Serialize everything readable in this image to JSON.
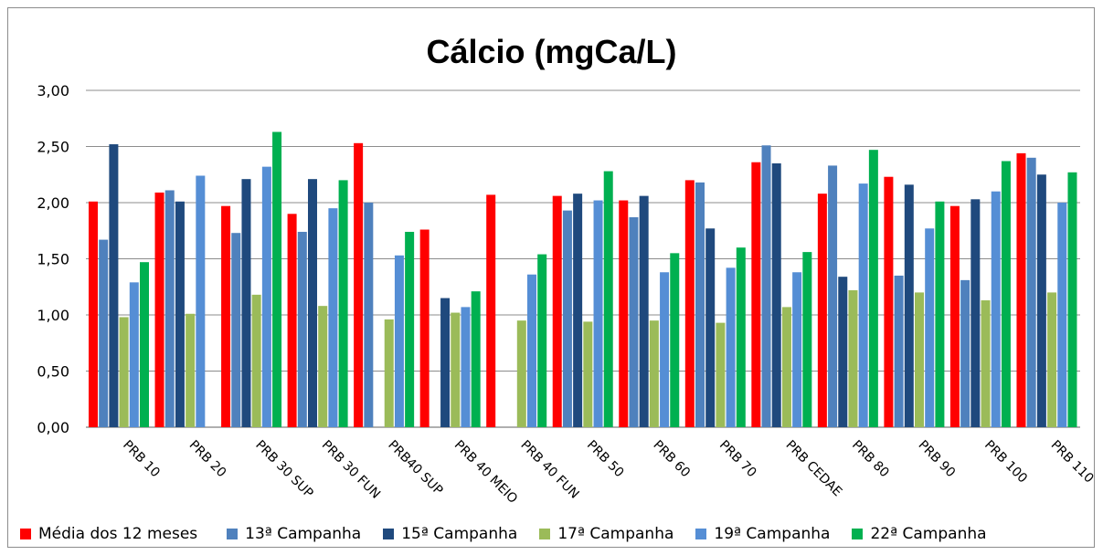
{
  "chart_data": {
    "type": "bar",
    "title": "Cálcio (mgCa/L)",
    "xlabel": "",
    "ylabel": "",
    "ylim": [
      0,
      3
    ],
    "yticks": [
      "0,00",
      "0,50",
      "1,00",
      "1,50",
      "2,00",
      "2,50",
      "3,00"
    ],
    "ytick_values": [
      0,
      0.5,
      1,
      1.5,
      2,
      2.5,
      3
    ],
    "grid": true,
    "legend_position": "bottom",
    "categories": [
      "PRB 10",
      "PRB 20",
      "PRB 30 SUP",
      "PRB 30 FUN",
      "PRB40 SUP",
      "PRB 40 MEIO",
      "PRB 40 FUN",
      "PRB 50",
      "PRB 60",
      "PRB 70",
      "PRB CEDAE",
      "PRB 80",
      "PRB 90",
      "PRB 100",
      "PRB 110"
    ],
    "series": [
      {
        "name": "Média dos 12 meses",
        "color": "#ff0000",
        "values": [
          2.01,
          2.09,
          1.97,
          1.9,
          2.53,
          1.76,
          2.07,
          2.06,
          2.02,
          2.2,
          2.36,
          2.08,
          2.23,
          1.97,
          2.44
        ]
      },
      {
        "name": "13ª Campanha",
        "color": "#4f81bd",
        "values": [
          1.67,
          2.11,
          1.73,
          1.74,
          2.0,
          null,
          null,
          1.93,
          1.87,
          2.18,
          2.51,
          2.33,
          1.35,
          1.31,
          2.4
        ]
      },
      {
        "name": "15ª Campanha",
        "color": "#1f497d",
        "values": [
          2.52,
          2.01,
          2.21,
          2.21,
          null,
          1.15,
          null,
          2.08,
          2.06,
          1.77,
          2.35,
          1.34,
          2.16,
          2.03,
          2.25
        ]
      },
      {
        "name": "17ª Campanha",
        "color": "#9bbb59",
        "values": [
          0.98,
          1.01,
          1.18,
          1.08,
          0.96,
          1.02,
          0.95,
          0.94,
          0.95,
          0.93,
          1.07,
          1.22,
          1.2,
          1.13,
          1.2
        ]
      },
      {
        "name": "19ª Campanha",
        "color": "#558ed5",
        "values": [
          1.29,
          2.24,
          2.32,
          1.95,
          1.53,
          1.07,
          1.36,
          2.02,
          1.38,
          1.42,
          1.38,
          2.17,
          1.77,
          2.1,
          2.0
        ]
      },
      {
        "name": "22ª Campanha",
        "color": "#00b050",
        "values": [
          1.47,
          null,
          2.63,
          2.2,
          1.74,
          1.21,
          1.54,
          2.28,
          1.55,
          1.6,
          1.56,
          2.47,
          2.01,
          2.37,
          2.27
        ]
      }
    ]
  }
}
